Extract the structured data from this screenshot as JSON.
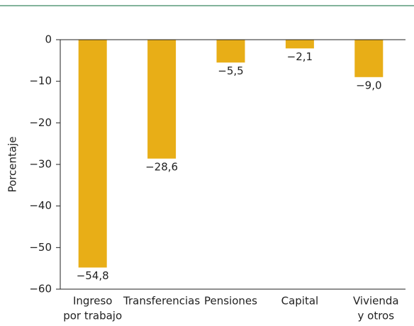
{
  "chart_data": {
    "type": "bar",
    "y_label": "Porcentaje",
    "categories": [
      [
        "Ingreso",
        "por trabajo"
      ],
      [
        "Transferencias"
      ],
      [
        "Pensiones"
      ],
      [
        "Capital"
      ],
      [
        "Vivienda",
        "y otros"
      ]
    ],
    "values": [
      -54.8,
      -28.6,
      -5.5,
      -2.1,
      -9.0
    ],
    "value_labels": [
      "−54,8",
      "−28,6",
      "−5,5",
      "−2,1",
      "−9,0"
    ],
    "color": "#e8ae17",
    "ylim": [
      -60,
      0
    ],
    "yticks": [
      0,
      {
        "value": -10,
        "label": "−10"
      },
      {
        "value": -20,
        "label": "−20"
      },
      {
        "value": -30,
        "label": "−30"
      },
      {
        "value": -40,
        "label": "−40"
      },
      {
        "value": -50,
        "label": "−50"
      },
      {
        "value": -60,
        "label": "−60"
      }
    ]
  }
}
